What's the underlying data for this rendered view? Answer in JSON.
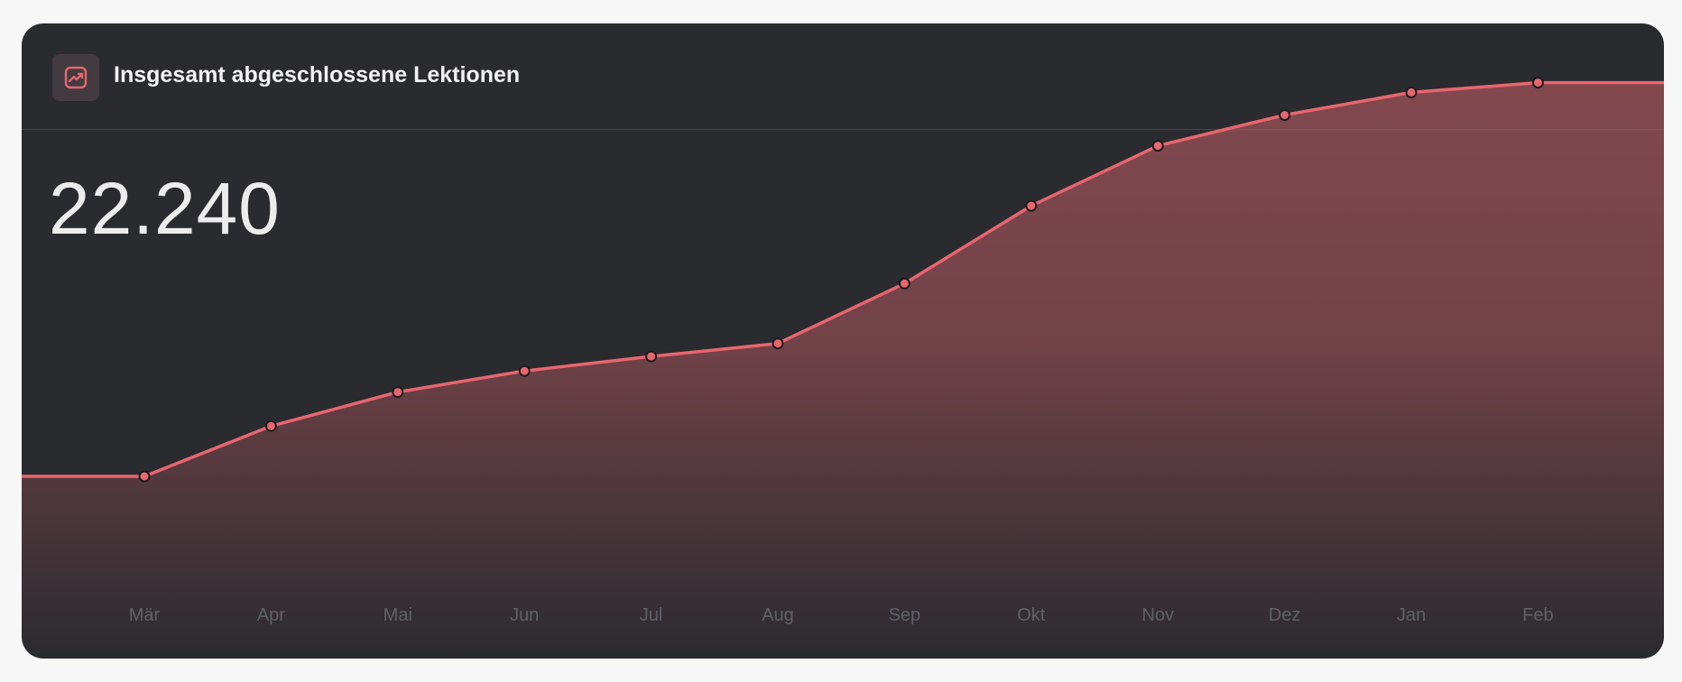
{
  "header": {
    "title": "Insgesamt abgeschlossene Lektionen",
    "icon": "trend-up-chart-icon"
  },
  "summary": {
    "value": "22.240"
  },
  "colors": {
    "card_background": "#2a2b2f",
    "accent": "#e8666e",
    "area_fill": "#b85a62",
    "tick_label": "#5f6167"
  },
  "chart_data": {
    "type": "area",
    "title": "Insgesamt abgeschlossene Lektionen",
    "xlabel": "",
    "ylabel": "",
    "categories": [
      "Mär",
      "Apr",
      "Mai",
      "Jun",
      "Jul",
      "Aug",
      "Sep",
      "Okt",
      "Nov",
      "Dez",
      "Jan",
      "Feb"
    ],
    "values": [
      9300,
      10850,
      11900,
      12550,
      13000,
      13400,
      15250,
      17650,
      19500,
      20450,
      21150,
      21450
    ],
    "ylim": [
      0,
      24000
    ],
    "grid": false,
    "legend": "none"
  }
}
